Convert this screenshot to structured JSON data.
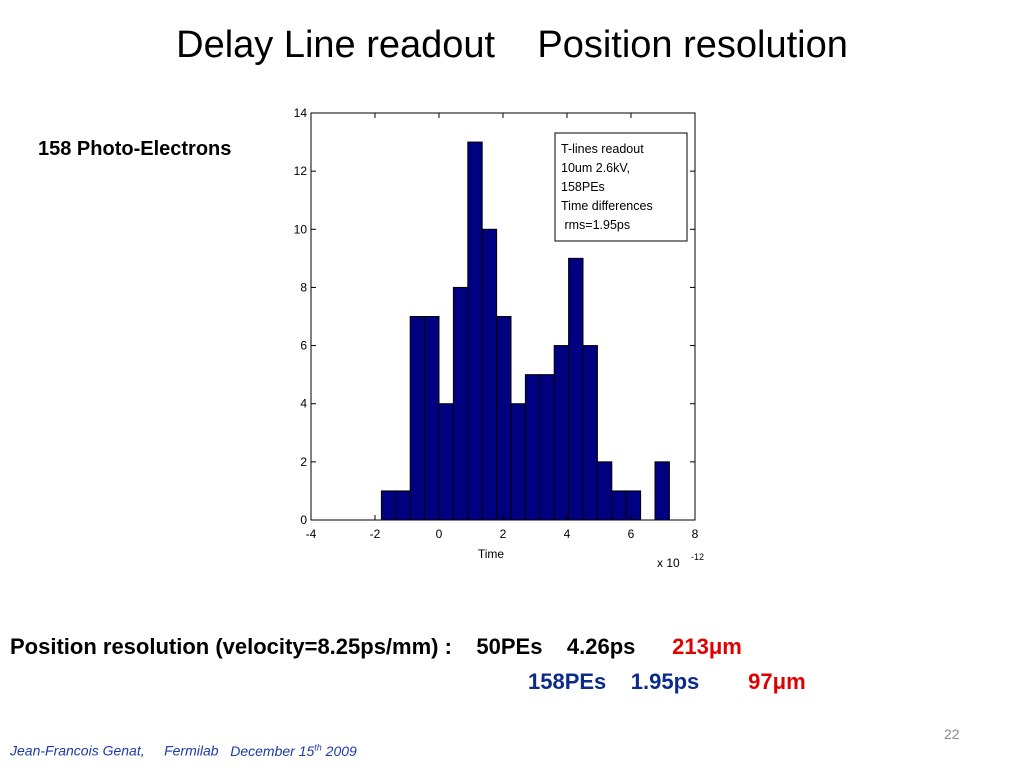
{
  "slide": {
    "title": "Delay Line readout    Position resolution",
    "pe_label": "158 Photo-Electrons",
    "resolution": {
      "prefix": "Position resolution (velocity=8.25ps/mm) :",
      "row1": {
        "pes": "50PEs",
        "time": "4.26ps",
        "value": "213",
        "unit": "μm"
      },
      "row2": {
        "pes": "158PEs",
        "time": "1.95ps",
        "value": "97",
        "unit": "μm"
      }
    },
    "footer": {
      "author": "Jean-Francois Genat,",
      "lab": "Fermilab",
      "date_prefix": "December 15",
      "date_sup": "th",
      "year": "2009"
    },
    "page_number": "22"
  },
  "chart_data": {
    "type": "bar",
    "xlabel": "Time",
    "x_multiplier": "x 10",
    "x_multiplier_exp": "-12",
    "xlim": [
      -4,
      8
    ],
    "ylim": [
      0,
      14
    ],
    "xticks": [
      -4,
      -2,
      0,
      2,
      4,
      6,
      8
    ],
    "yticks": [
      0,
      2,
      4,
      6,
      8,
      10,
      12,
      14
    ],
    "bin_width": 0.45,
    "bins": [
      {
        "x": -1.8,
        "count": 1
      },
      {
        "x": -1.35,
        "count": 1
      },
      {
        "x": -0.9,
        "count": 7
      },
      {
        "x": -0.45,
        "count": 7
      },
      {
        "x": 0.0,
        "count": 4
      },
      {
        "x": 0.45,
        "count": 8
      },
      {
        "x": 0.9,
        "count": 13
      },
      {
        "x": 1.35,
        "count": 10
      },
      {
        "x": 1.8,
        "count": 7
      },
      {
        "x": 2.25,
        "count": 4
      },
      {
        "x": 2.7,
        "count": 5
      },
      {
        "x": 3.15,
        "count": 5
      },
      {
        "x": 3.6,
        "count": 6
      },
      {
        "x": 4.05,
        "count": 9
      },
      {
        "x": 4.5,
        "count": 6
      },
      {
        "x": 4.95,
        "count": 2
      },
      {
        "x": 5.4,
        "count": 1
      },
      {
        "x": 5.85,
        "count": 1
      },
      {
        "x": 6.3,
        "count": 0
      },
      {
        "x": 6.75,
        "count": 2
      }
    ],
    "legend_lines": [
      "T-lines readout",
      "10um 2.6kV,",
      "158PEs",
      "Time differences",
      " rms=1.95ps"
    ],
    "legend_position": "top-right",
    "bar_color": "#000080"
  }
}
